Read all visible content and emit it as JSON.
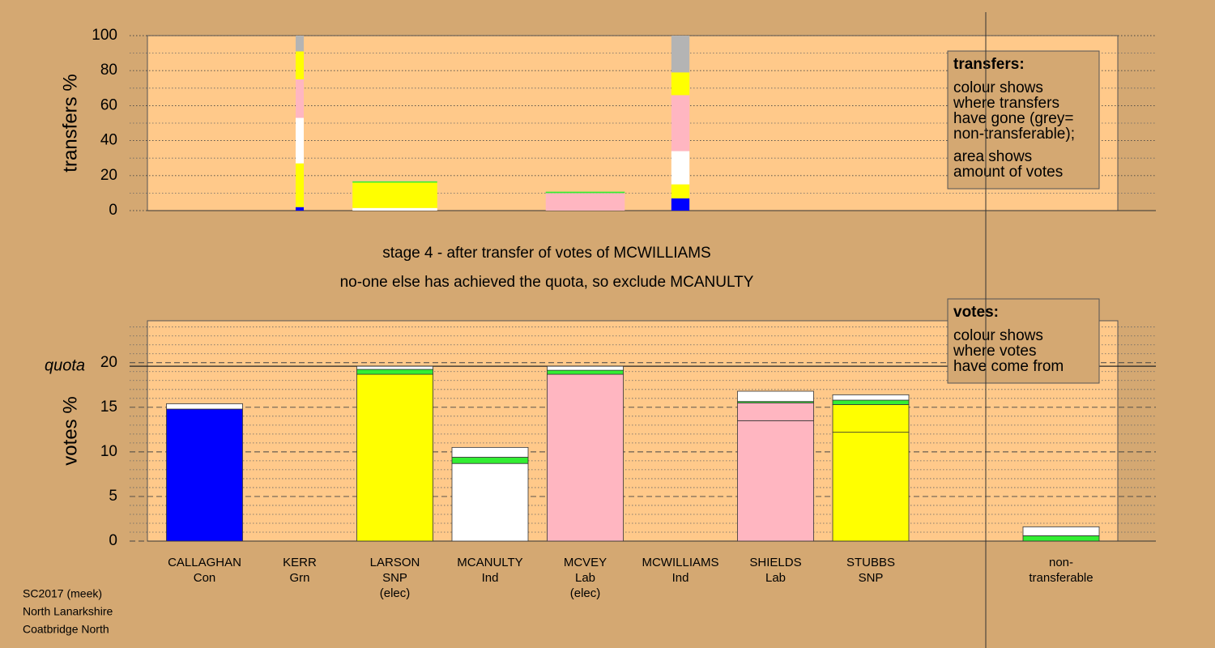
{
  "stage_text": "stage 4 - after transfer of votes of MCWILLIAMS",
  "decision_text": "no-one else has achieved the quota, so exclude MCANULTY",
  "footer": [
    "SC2017 (meek)",
    "North Lanarkshire",
    "Coatbridge North"
  ],
  "chart_data": [
    {
      "type": "stacked_bar",
      "y_label": "transfers %",
      "ylim": [
        0,
        100
      ],
      "yticks": [
        0,
        20,
        40,
        60,
        80,
        100
      ],
      "minor_yticks": [
        10,
        30,
        50,
        70,
        90
      ],
      "grid": true,
      "grid_style": "dotted",
      "widths": [
        null,
        0.085,
        0.89,
        null,
        0.83,
        0.19,
        null,
        null,
        null,
        null
      ],
      "series": [
        {
          "color": "#0000ff",
          "values": [
            null,
            2,
            null,
            null,
            null,
            7,
            null,
            null,
            null,
            null
          ]
        },
        {
          "color": "#ffff00",
          "values": [
            null,
            25,
            null,
            null,
            null,
            8,
            null,
            null,
            null,
            null
          ]
        },
        {
          "color": "#ffffff",
          "values": [
            null,
            26,
            1.5,
            null,
            null,
            19,
            null,
            null,
            null,
            null
          ]
        },
        {
          "color": "#ffb6c1",
          "values": [
            null,
            22,
            null,
            null,
            10,
            32,
            null,
            null,
            null,
            null
          ]
        },
        {
          "color": "#ffff00",
          "values": [
            null,
            16,
            14.5,
            null,
            null,
            13,
            null,
            null,
            null,
            null
          ]
        },
        {
          "color": "#33ee33",
          "values": [
            null,
            null,
            0.7,
            null,
            0.8,
            null,
            null,
            null,
            null,
            null
          ]
        },
        {
          "color": "#b4b4b4",
          "values": [
            null,
            9,
            null,
            null,
            null,
            21,
            null,
            null,
            null,
            null
          ]
        }
      ],
      "legend_box": {
        "title": "transfers:",
        "paragraphs": [
          [
            "colour shows",
            "where transfers",
            "have gone (grey=",
            "non-transferable);"
          ],
          [
            "area shows",
            "amount of votes"
          ]
        ]
      }
    },
    {
      "type": "stacked_bar",
      "y_label": "votes %",
      "ylim": [
        0,
        24.7
      ],
      "yticks": [
        0,
        5,
        10,
        15,
        20
      ],
      "minor_yticks": [
        1,
        2,
        3,
        4,
        6,
        7,
        8,
        9,
        11,
        12,
        13,
        14,
        16,
        17,
        18,
        19,
        21,
        22,
        23,
        24
      ],
      "grid": true,
      "grid_style": "dashed",
      "quota": 19.6,
      "quota_label": "quota",
      "categories": [
        "CALLAGHAN",
        "KERR",
        "LARSON",
        "MCANULTY",
        "MCVEY",
        "MCWILLIAMS",
        "SHIELDS",
        "STUBBS",
        null,
        "non-"
      ],
      "parties": [
        "Con",
        "Grn",
        "SNP",
        "Ind",
        "Lab",
        "Ind",
        "Lab",
        "SNP",
        null,
        "transferable"
      ],
      "notes": [
        null,
        null,
        "(elec)",
        null,
        "(elec)",
        null,
        null,
        null,
        null,
        null
      ],
      "series": [
        {
          "color": "#0000ff",
          "values": [
            14.8,
            null,
            null,
            null,
            null,
            null,
            null,
            null,
            null,
            null
          ]
        },
        {
          "color": "#ffff00",
          "values": [
            null,
            null,
            18.7,
            null,
            null,
            null,
            null,
            12.2,
            null,
            null
          ]
        },
        {
          "color": "#ffb6c1",
          "values": [
            null,
            null,
            null,
            null,
            18.7,
            null,
            13.5,
            null,
            null,
            null
          ]
        },
        {
          "color": "#ffffff",
          "values": [
            null,
            null,
            null,
            8.7,
            null,
            null,
            null,
            null,
            null,
            null
          ]
        },
        {
          "color": "#ffff00",
          "values": [
            null,
            null,
            null,
            null,
            null,
            null,
            null,
            3.1,
            null,
            null
          ]
        },
        {
          "color": "#ffb6c1",
          "values": [
            null,
            null,
            null,
            null,
            null,
            null,
            2.0,
            null,
            null,
            null
          ]
        },
        {
          "color": "#33ee33",
          "values": [
            null,
            null,
            0.55,
            0.7,
            0.45,
            null,
            0.15,
            0.5,
            null,
            0.6
          ]
        },
        {
          "color": "#ffffff",
          "values": [
            0.6,
            null,
            0.35,
            1.1,
            0.45,
            null,
            1.15,
            0.6,
            null,
            1.0
          ]
        }
      ],
      "legend_box": {
        "title": "votes:",
        "paragraphs": [
          [
            "colour shows",
            "where votes",
            "have come from"
          ]
        ]
      }
    }
  ]
}
